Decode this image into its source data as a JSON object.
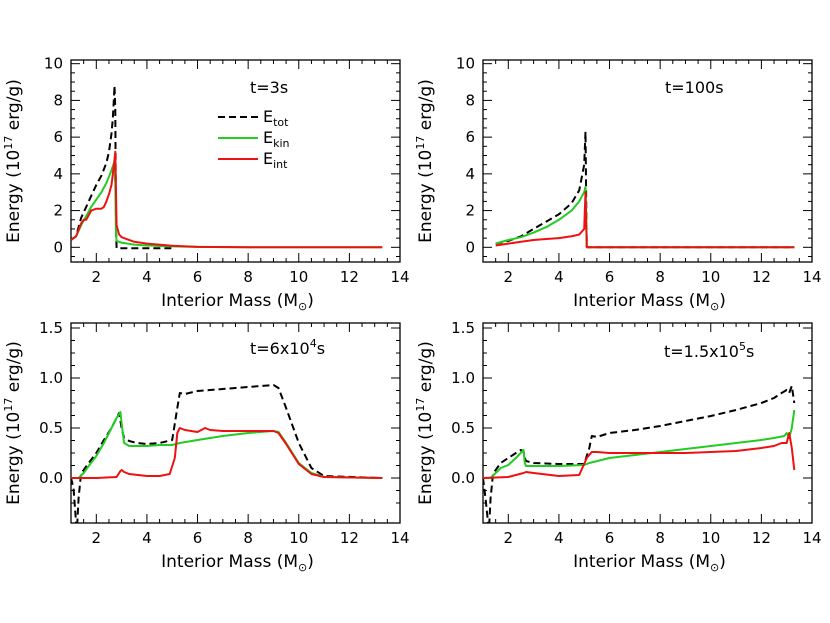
{
  "figure": {
    "xlabel_main": "Interior Mass (M",
    "xlabel_sun": "⊙",
    "xlabel_end": ")",
    "ylabel_main": "Energy (10",
    "ylabel_sup": "17",
    "ylabel_end": " erg/g)"
  },
  "colors": {
    "total": "#000000",
    "kinetic": "#22cc22",
    "internal": "#ee1111"
  },
  "chart_data": [
    {
      "type": "line",
      "annotation": {
        "main": "t=3s"
      },
      "legend": {
        "placement": "top-right",
        "items": [
          {
            "base": "E",
            "sub": "tot",
            "style": "dashed",
            "color_key": "total"
          },
          {
            "base": "E",
            "sub": "kin",
            "style": "solid",
            "color_key": "kinetic"
          },
          {
            "base": "E",
            "sub": "int",
            "style": "solid",
            "color_key": "internal"
          }
        ]
      },
      "xlim": [
        1,
        14
      ],
      "ylim": [
        -0.8,
        10.2
      ],
      "xticks": [
        2,
        4,
        6,
        8,
        10,
        12,
        14
      ],
      "yticks": [
        0,
        2,
        4,
        6,
        8,
        10
      ],
      "ytick_labels": [
        "0",
        "2",
        "4",
        "6",
        "8",
        "10"
      ],
      "series": [
        {
          "key": "total",
          "style": "dashed",
          "x": [
            1.0,
            1.2,
            1.4,
            1.6,
            1.8,
            2.0,
            2.2,
            2.4,
            2.5,
            2.6,
            2.65,
            2.7,
            2.72,
            2.75,
            2.78,
            2.8,
            3.0,
            4.0,
            5.0
          ],
          "y": [
            0.4,
            0.6,
            1.6,
            2.2,
            2.8,
            3.4,
            3.9,
            4.6,
            5.2,
            6.2,
            7.0,
            8.2,
            8.8,
            7.5,
            1.0,
            -0.05,
            -0.05,
            -0.05,
            -0.05
          ]
        },
        {
          "key": "kinetic",
          "style": "solid",
          "x": [
            1.0,
            1.2,
            1.4,
            1.6,
            1.8,
            2.0,
            2.2,
            2.4,
            2.6,
            2.7,
            2.75,
            2.78,
            2.8,
            3.0,
            3.5,
            4.0,
            5.0,
            6.0,
            8.0,
            13.3
          ],
          "y": [
            0.4,
            0.6,
            1.2,
            1.7,
            2.2,
            2.6,
            3.0,
            3.5,
            4.2,
            4.6,
            3.5,
            0.8,
            0.35,
            0.25,
            0.15,
            0.1,
            0.05,
            0.02,
            0,
            0
          ]
        },
        {
          "key": "internal",
          "style": "solid",
          "x": [
            1.0,
            1.2,
            1.4,
            1.5,
            1.6,
            1.8,
            2.0,
            2.2,
            2.3,
            2.4,
            2.5,
            2.6,
            2.7,
            2.75,
            2.78,
            2.8,
            2.9,
            3.0,
            3.5,
            4.0,
            5.0,
            6.0,
            8.0,
            13.3
          ],
          "y": [
            0.4,
            0.6,
            1.3,
            1.5,
            1.5,
            2.0,
            2.1,
            2.1,
            2.2,
            2.5,
            2.9,
            3.4,
            4.5,
            5.2,
            3.0,
            1.2,
            0.7,
            0.55,
            0.3,
            0.2,
            0.08,
            0.02,
            0,
            0
          ]
        }
      ]
    },
    {
      "type": "line",
      "annotation": {
        "main": "t=100s"
      },
      "xlim": [
        1,
        14
      ],
      "ylim": [
        -0.8,
        10.2
      ],
      "xticks": [
        2,
        4,
        6,
        8,
        10,
        12,
        14
      ],
      "yticks": [
        0,
        2,
        4,
        6,
        8,
        10
      ],
      "ytick_labels": [
        "0",
        "2",
        "4",
        "6",
        "8",
        "10"
      ],
      "series": [
        {
          "key": "total",
          "style": "dashed",
          "x": [
            1.5,
            2.0,
            2.5,
            3.0,
            3.5,
            4.0,
            4.5,
            4.8,
            5.0,
            5.05,
            5.08,
            5.1,
            5.2,
            8.0,
            13.3
          ],
          "y": [
            0.2,
            0.35,
            0.6,
            1.0,
            1.4,
            1.8,
            2.4,
            3.1,
            4.5,
            6.3,
            2.0,
            0,
            0,
            0,
            0
          ]
        },
        {
          "key": "kinetic",
          "style": "solid",
          "x": [
            1.5,
            2.0,
            2.5,
            3.0,
            3.5,
            4.0,
            4.5,
            4.8,
            5.0,
            5.05,
            5.08,
            5.1,
            5.2,
            8.0,
            13.3
          ],
          "y": [
            0.2,
            0.4,
            0.55,
            0.8,
            1.1,
            1.5,
            2.0,
            2.5,
            3.0,
            3.3,
            1.5,
            0,
            0,
            0,
            0
          ]
        },
        {
          "key": "internal",
          "style": "solid",
          "x": [
            1.5,
            2.0,
            2.5,
            3.0,
            3.5,
            4.0,
            4.5,
            4.8,
            5.0,
            5.05,
            5.08,
            5.1,
            5.2,
            8.0,
            13.3
          ],
          "y": [
            0.1,
            0.2,
            0.3,
            0.4,
            0.45,
            0.5,
            0.6,
            0.7,
            1.0,
            3.0,
            1.0,
            0.02,
            0,
            0,
            0
          ]
        }
      ]
    },
    {
      "type": "line",
      "annotation": {
        "main": "t=6x10",
        "sup": "4",
        "tail": "s"
      },
      "xlim": [
        1,
        14
      ],
      "ylim": [
        -0.45,
        1.55
      ],
      "xticks": [
        2,
        4,
        6,
        8,
        10,
        12,
        14
      ],
      "yticks": [
        0,
        0.5,
        1.0,
        1.5
      ],
      "ytick_labels": [
        "0.0",
        "0.5",
        "1.0",
        "1.5"
      ],
      "series": [
        {
          "key": "total",
          "style": "dashed",
          "x": [
            1.0,
            1.1,
            1.2,
            1.25,
            1.3,
            1.4,
            1.5,
            1.7,
            2.0,
            2.3,
            2.6,
            2.8,
            2.9,
            3.0,
            3.1,
            3.3,
            3.6,
            4.0,
            4.5,
            5.0,
            5.2,
            5.3,
            5.5,
            6.0,
            6.5,
            7.0,
            7.5,
            8.0,
            8.5,
            9.0,
            9.2,
            9.5,
            10.0,
            10.5,
            11.0,
            13.3
          ],
          "y": [
            0,
            -0.1,
            -0.45,
            -0.45,
            -0.2,
            0.05,
            0.08,
            0.15,
            0.25,
            0.38,
            0.5,
            0.6,
            0.65,
            0.5,
            0.4,
            0.37,
            0.35,
            0.34,
            0.35,
            0.38,
            0.7,
            0.85,
            0.84,
            0.87,
            0.88,
            0.89,
            0.9,
            0.91,
            0.92,
            0.93,
            0.9,
            0.7,
            0.35,
            0.1,
            0.02,
            0
          ]
        },
        {
          "key": "kinetic",
          "style": "solid",
          "x": [
            1.0,
            1.3,
            1.5,
            1.7,
            2.0,
            2.3,
            2.6,
            2.8,
            2.95,
            3.0,
            3.1,
            3.3,
            3.6,
            4.0,
            4.5,
            5.0,
            5.3,
            6.0,
            7.0,
            8.0,
            9.0,
            9.2,
            9.5,
            10.0,
            10.5,
            11.0,
            13.3
          ],
          "y": [
            0,
            0,
            0.05,
            0.12,
            0.22,
            0.35,
            0.5,
            0.6,
            0.66,
            0.55,
            0.35,
            0.32,
            0.32,
            0.32,
            0.33,
            0.33,
            0.35,
            0.38,
            0.42,
            0.45,
            0.47,
            0.46,
            0.35,
            0.15,
            0.05,
            0.01,
            0
          ]
        },
        {
          "key": "internal",
          "style": "solid",
          "x": [
            1.0,
            2.0,
            2.8,
            2.95,
            3.0,
            3.1,
            3.3,
            4.0,
            4.5,
            4.9,
            5.1,
            5.2,
            5.3,
            5.5,
            6.0,
            6.3,
            6.5,
            7.0,
            7.5,
            8.0,
            8.5,
            9.0,
            9.2,
            9.5,
            10.0,
            10.5,
            11.0,
            13.3
          ],
          "y": [
            0,
            0,
            0.01,
            0.07,
            0.08,
            0.06,
            0.04,
            0.02,
            0.02,
            0.04,
            0.2,
            0.45,
            0.5,
            0.48,
            0.46,
            0.5,
            0.48,
            0.47,
            0.47,
            0.47,
            0.47,
            0.47,
            0.45,
            0.34,
            0.14,
            0.04,
            0.01,
            0
          ]
        }
      ]
    },
    {
      "type": "line",
      "annotation": {
        "main": "t=1.5x10",
        "sup": "5",
        "tail": "s"
      },
      "xlim": [
        1,
        14
      ],
      "ylim": [
        -0.45,
        1.55
      ],
      "xticks": [
        2,
        4,
        6,
        8,
        10,
        12,
        14
      ],
      "yticks": [
        0,
        0.5,
        1.0,
        1.5
      ],
      "ytick_labels": [
        "0.0",
        "0.5",
        "1.0",
        "1.5"
      ],
      "series": [
        {
          "key": "total",
          "style": "dashed",
          "x": [
            1.0,
            1.1,
            1.2,
            1.25,
            1.3,
            1.4,
            1.5,
            1.7,
            2.0,
            2.3,
            2.5,
            2.6,
            2.65,
            2.7,
            3.0,
            4.0,
            5.0,
            5.2,
            5.3,
            5.5,
            6.0,
            7.0,
            8.0,
            9.0,
            10.0,
            11.0,
            12.0,
            12.5,
            12.8,
            13.0,
            13.1,
            13.2,
            13.3
          ],
          "y": [
            0,
            -0.2,
            -0.45,
            -0.45,
            -0.2,
            0.05,
            0.08,
            0.15,
            0.2,
            0.25,
            0.28,
            0.27,
            0.2,
            0.17,
            0.15,
            0.14,
            0.14,
            0.3,
            0.42,
            0.41,
            0.45,
            0.48,
            0.52,
            0.57,
            0.62,
            0.68,
            0.75,
            0.8,
            0.85,
            0.88,
            0.85,
            0.92,
            0.75
          ]
        },
        {
          "key": "kinetic",
          "style": "solid",
          "x": [
            1.0,
            1.3,
            1.5,
            1.7,
            2.0,
            2.3,
            2.6,
            2.65,
            2.7,
            3.0,
            4.0,
            5.0,
            5.2,
            6.0,
            7.0,
            8.0,
            9.0,
            10.0,
            11.0,
            12.0,
            12.5,
            12.9,
            13.0,
            13.1,
            13.2,
            13.3
          ],
          "y": [
            0,
            0,
            0.05,
            0.1,
            0.13,
            0.2,
            0.28,
            0.15,
            0.12,
            0.12,
            0.12,
            0.13,
            0.15,
            0.2,
            0.23,
            0.26,
            0.29,
            0.32,
            0.35,
            0.38,
            0.4,
            0.42,
            0.45,
            0.4,
            0.5,
            0.68
          ]
        },
        {
          "key": "internal",
          "style": "solid",
          "x": [
            1.0,
            2.0,
            2.6,
            2.7,
            3.0,
            4.0,
            4.8,
            5.1,
            5.3,
            5.5,
            6.0,
            7.0,
            8.0,
            9.0,
            10.0,
            11.0,
            12.0,
            12.5,
            12.8,
            13.0,
            13.1,
            13.2,
            13.3
          ],
          "y": [
            0,
            0.01,
            0.05,
            0.06,
            0.05,
            0.02,
            0.03,
            0.2,
            0.26,
            0.26,
            0.25,
            0.25,
            0.25,
            0.25,
            0.26,
            0.27,
            0.3,
            0.32,
            0.35,
            0.35,
            0.45,
            0.3,
            0.08
          ]
        }
      ]
    }
  ]
}
